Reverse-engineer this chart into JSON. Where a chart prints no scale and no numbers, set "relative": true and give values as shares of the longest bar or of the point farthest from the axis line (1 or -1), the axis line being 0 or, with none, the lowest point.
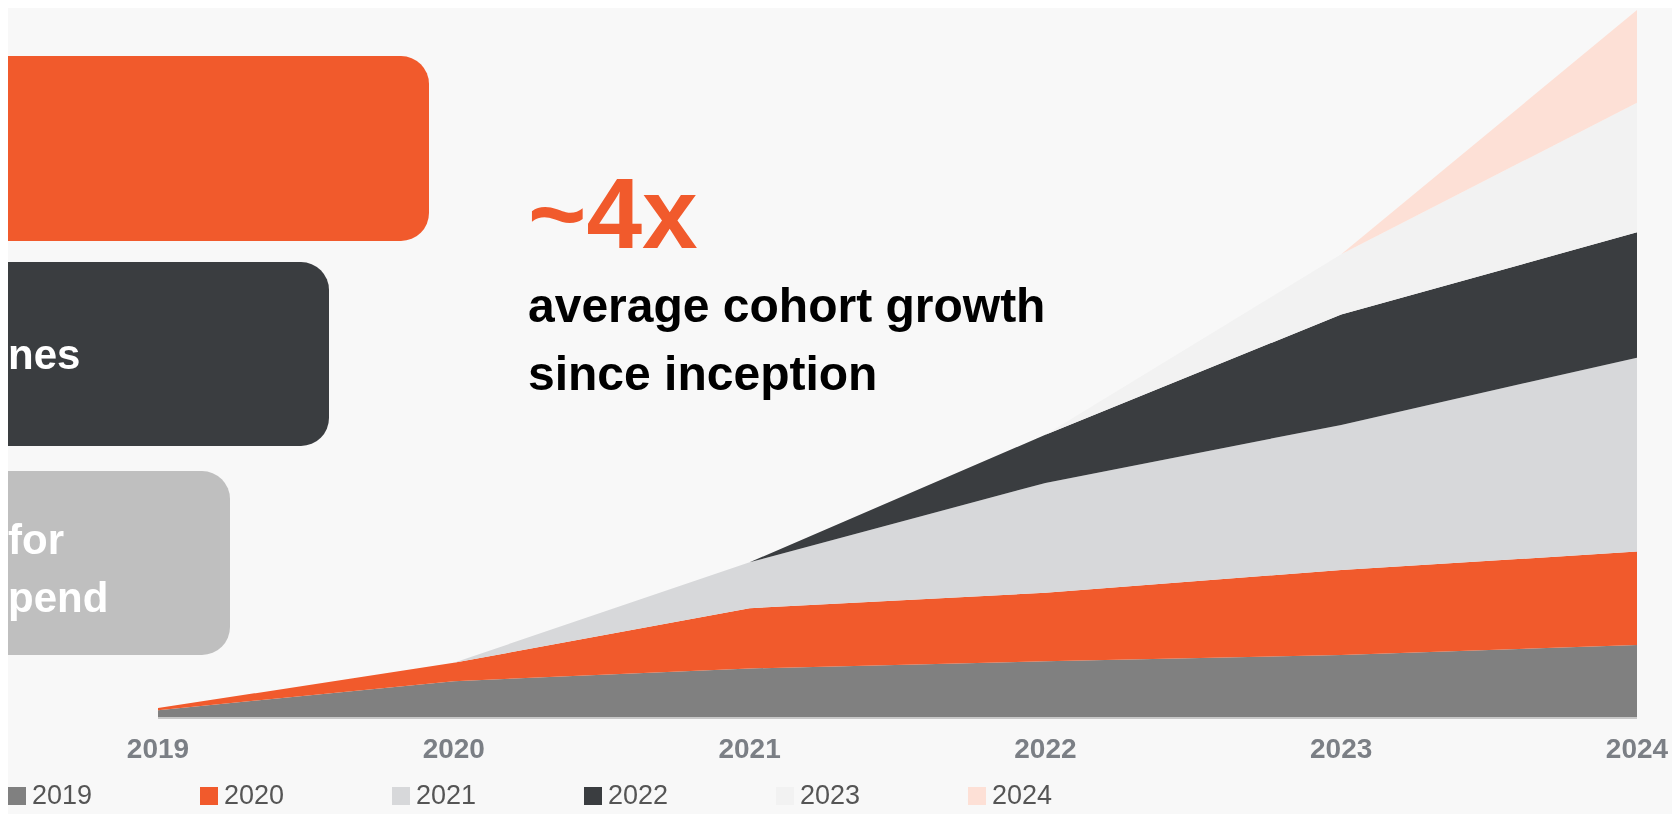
{
  "chart_data": {
    "type": "area",
    "stacked": true,
    "relative": true,
    "categories": [
      "2019",
      "2020",
      "2021",
      "2022",
      "2023",
      "2024"
    ],
    "series": [
      {
        "name": "2019",
        "color": "#808080",
        "values": [
          0.011,
          0.052,
          0.07,
          0.08,
          0.089,
          0.103
        ]
      },
      {
        "name": "2020",
        "color": "#f15a2c",
        "values": [
          0.003,
          0.026,
          0.085,
          0.097,
          0.12,
          0.132
        ]
      },
      {
        "name": "2021",
        "color": "#d7d8da",
        "values": [
          0,
          0,
          0.065,
          0.155,
          0.205,
          0.274
        ]
      },
      {
        "name": "2022",
        "color": "#3a3d40",
        "values": [
          0,
          0,
          0,
          0.068,
          0.156,
          0.177
        ]
      },
      {
        "name": "2023",
        "color": "#f2f2f2",
        "values": [
          0,
          0,
          0,
          0,
          0.085,
          0.183
        ]
      },
      {
        "name": "2024",
        "color": "#fde0d6",
        "values": [
          0,
          0,
          0,
          0,
          0,
          0.131
        ]
      }
    ],
    "legend": "bottom left",
    "grid": false,
    "annotations": [
      "~4x",
      "average cohort growth since inception",
      "nes",
      "for\npend"
    ]
  }
}
